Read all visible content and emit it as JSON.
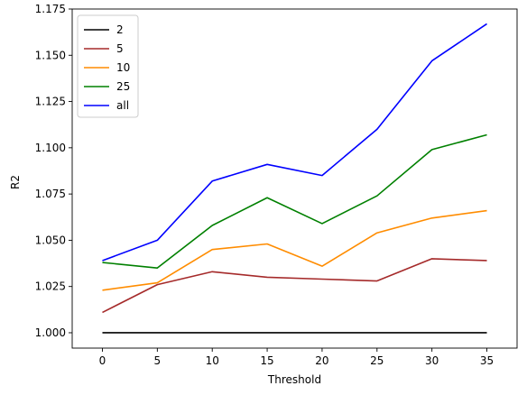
{
  "chart_data": {
    "type": "line",
    "title": "",
    "xlabel": "Threshold",
    "ylabel": "R2",
    "x": [
      0,
      5,
      10,
      15,
      20,
      25,
      30,
      35
    ],
    "xticks": [
      "0",
      "5",
      "10",
      "15",
      "20",
      "25",
      "30",
      "35"
    ],
    "yticks": [
      "1.000",
      "1.025",
      "1.050",
      "1.075",
      "1.100",
      "1.125",
      "1.150",
      "1.175"
    ],
    "xlim": [
      -2.75,
      37.75
    ],
    "ylim": [
      0.9917,
      1.175
    ],
    "grid": false,
    "legend_position": "top-left",
    "series": [
      {
        "name": "2",
        "color": "#000000",
        "values": [
          1.0,
          1.0,
          1.0,
          1.0,
          1.0,
          1.0,
          1.0,
          1.0
        ]
      },
      {
        "name": "5",
        "color": "#a52a2a",
        "values": [
          1.011,
          1.026,
          1.033,
          1.03,
          1.029,
          1.028,
          1.04,
          1.039
        ]
      },
      {
        "name": "10",
        "color": "#ff8c00",
        "values": [
          1.023,
          1.027,
          1.045,
          1.048,
          1.036,
          1.054,
          1.062,
          1.066
        ]
      },
      {
        "name": "25",
        "color": "#008000",
        "values": [
          1.038,
          1.035,
          1.058,
          1.073,
          1.059,
          1.074,
          1.099,
          1.107
        ]
      },
      {
        "name": "all",
        "color": "#0000ff",
        "values": [
          1.039,
          1.05,
          1.082,
          1.091,
          1.085,
          1.11,
          1.147,
          1.167
        ]
      }
    ]
  }
}
